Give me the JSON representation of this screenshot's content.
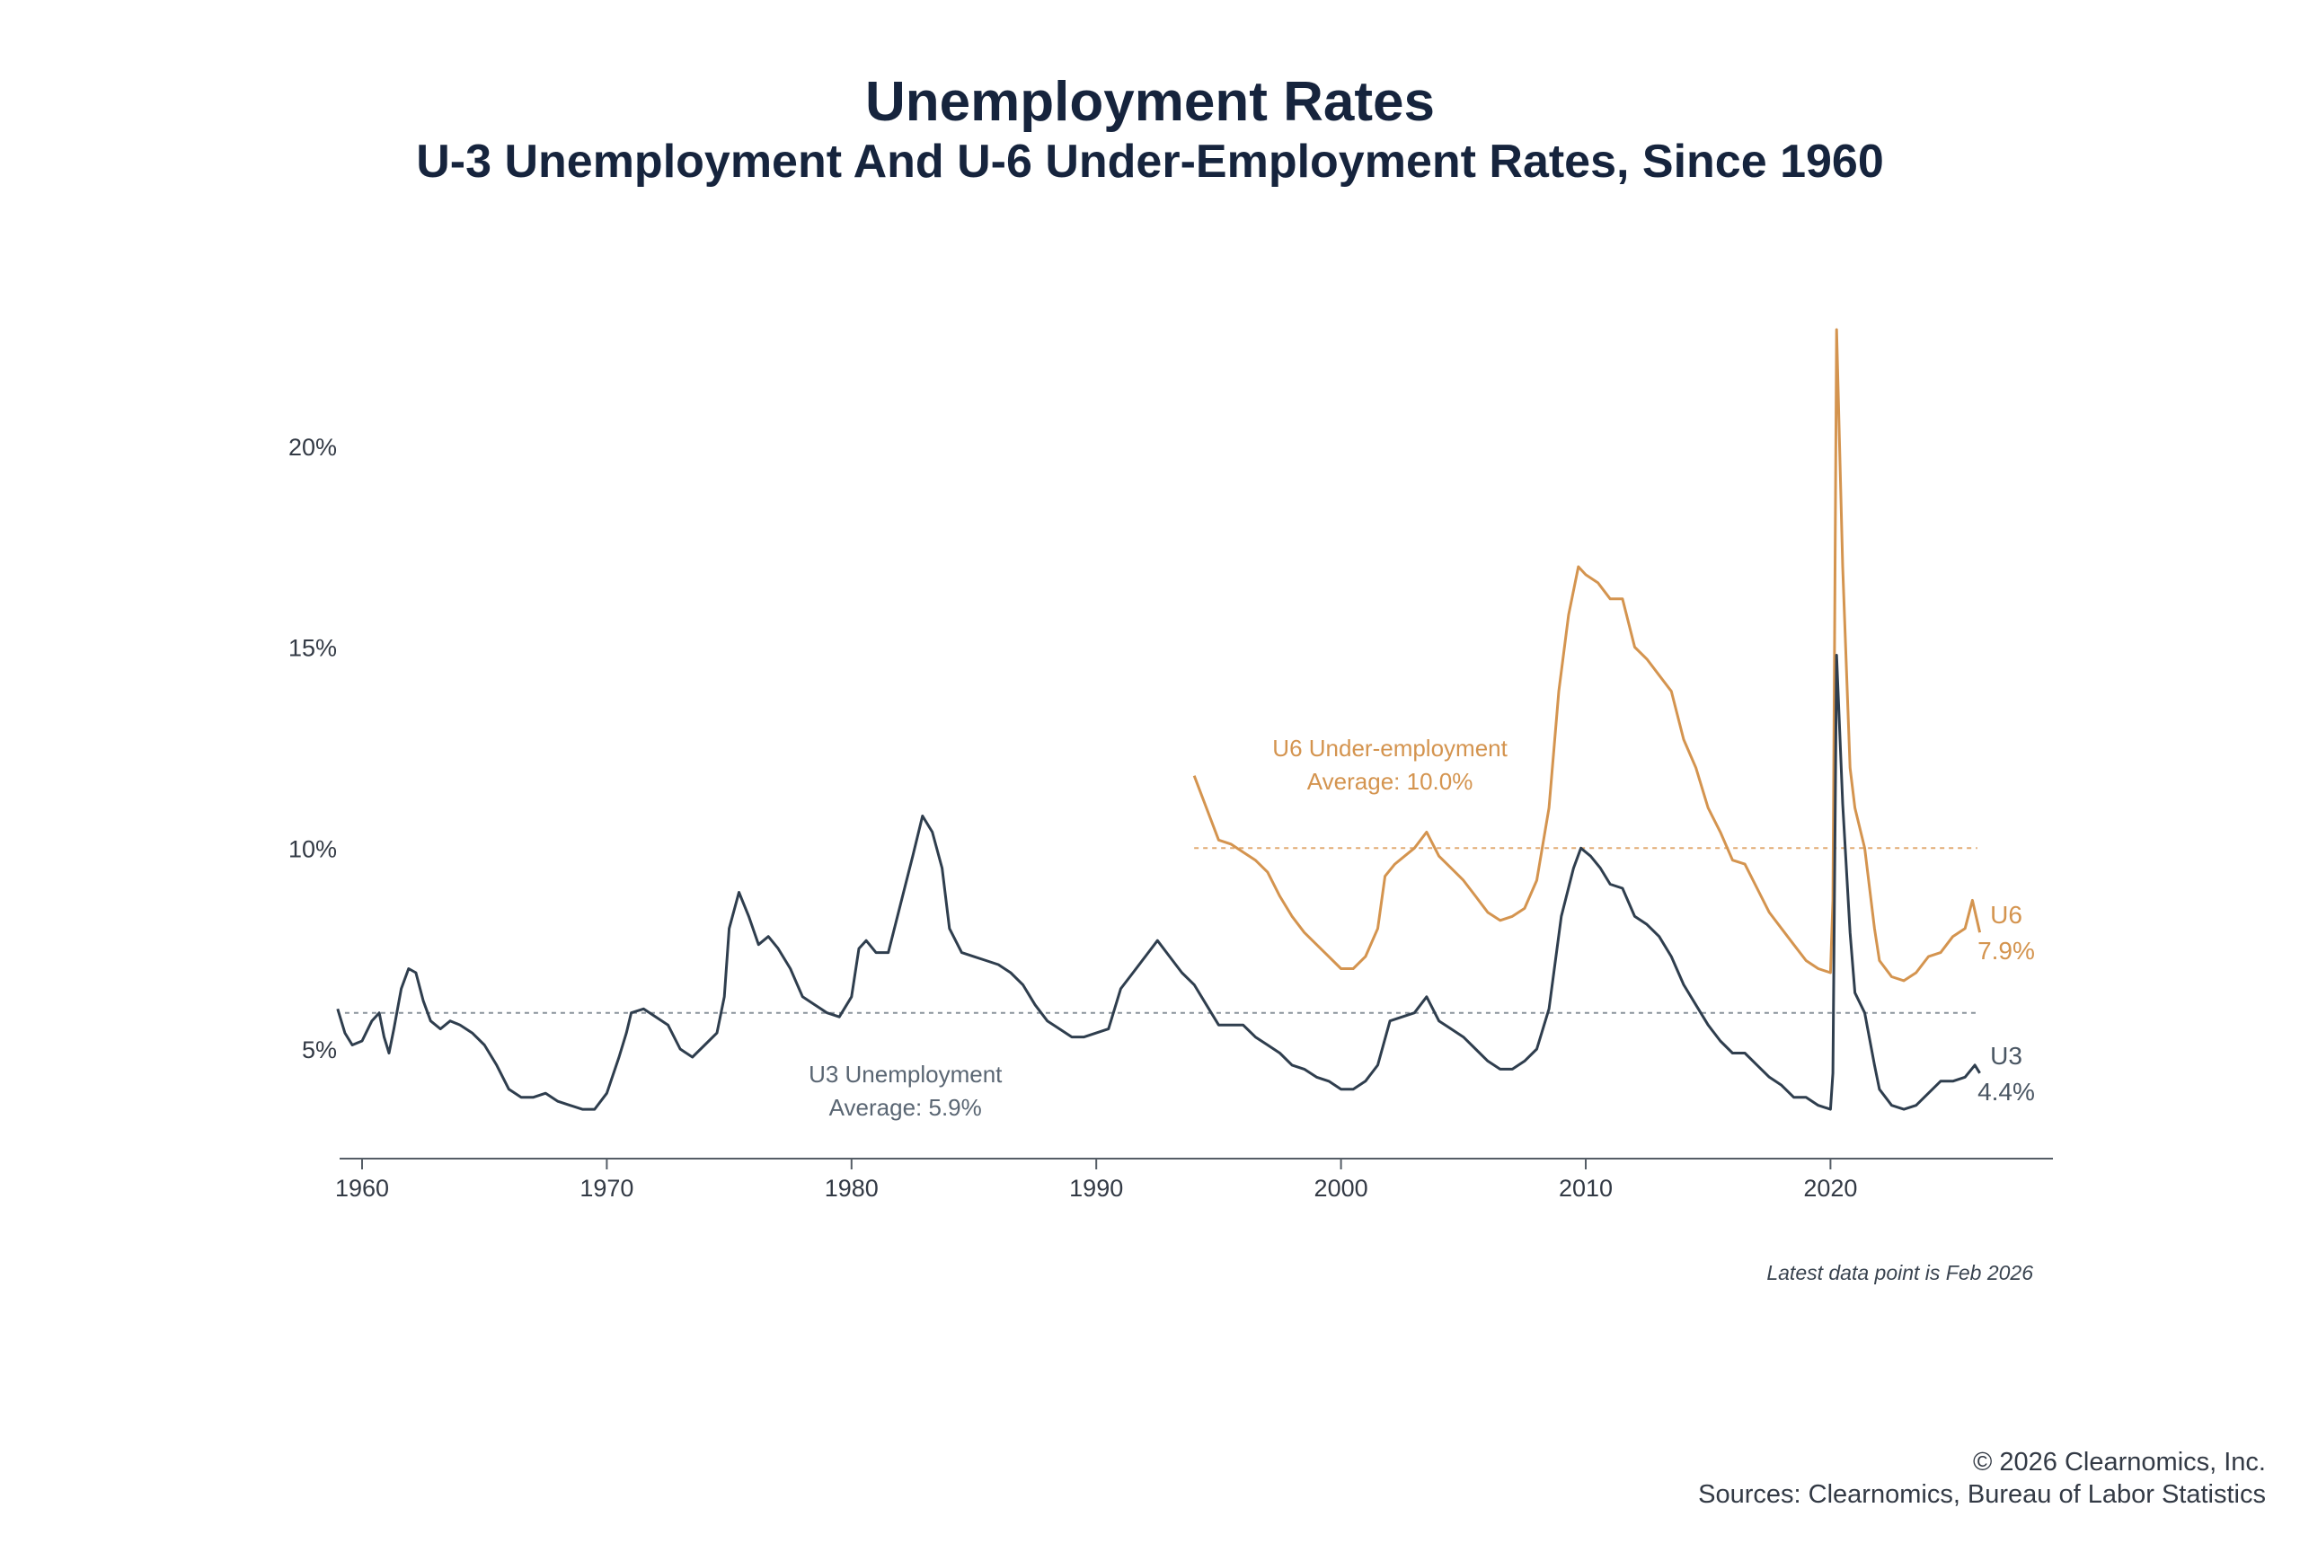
{
  "chart_data": {
    "type": "line",
    "title": "Unemployment Rates",
    "subtitle": "U-3 Unemployment And U-6 Under-Employment Rates, Since 1960",
    "xlabel": "",
    "ylabel": "",
    "xlim": [
      1960,
      2029
    ],
    "ylim": [
      2.4,
      23
    ],
    "x_ticks": [
      "1960",
      "1970",
      "1980",
      "1990",
      "2000",
      "2010",
      "2020"
    ],
    "y_ticks": [
      "5%",
      "10%",
      "15%",
      "20%"
    ],
    "grid": false,
    "note": "Latest data point is Feb 2026",
    "series": [
      {
        "name": "U3",
        "end_label": "U3",
        "end_value_label": "4.4%",
        "color": "#2f3e4e",
        "average": 5.9,
        "average_label_1": "U3 Unemployment",
        "average_label_2": "Average: 5.9%",
        "points": [
          [
            1959.0,
            6.0
          ],
          [
            1959.3,
            5.4
          ],
          [
            1959.6,
            5.1
          ],
          [
            1960.0,
            5.2
          ],
          [
            1960.4,
            5.7
          ],
          [
            1960.7,
            5.9
          ],
          [
            1960.9,
            5.3
          ],
          [
            1961.1,
            4.9
          ],
          [
            1961.3,
            5.5
          ],
          [
            1961.6,
            6.5
          ],
          [
            1961.9,
            7.0
          ],
          [
            1962.2,
            6.9
          ],
          [
            1962.5,
            6.2
          ],
          [
            1962.8,
            5.7
          ],
          [
            1963.2,
            5.5
          ],
          [
            1963.6,
            5.7
          ],
          [
            1964.0,
            5.6
          ],
          [
            1964.5,
            5.4
          ],
          [
            1965.0,
            5.1
          ],
          [
            1965.5,
            4.6
          ],
          [
            1966.0,
            4.0
          ],
          [
            1966.5,
            3.8
          ],
          [
            1967.0,
            3.8
          ],
          [
            1967.5,
            3.9
          ],
          [
            1968.0,
            3.7
          ],
          [
            1968.5,
            3.6
          ],
          [
            1969.0,
            3.5
          ],
          [
            1969.5,
            3.5
          ],
          [
            1970.0,
            3.9
          ],
          [
            1970.5,
            4.8
          ],
          [
            1970.8,
            5.4
          ],
          [
            1971.0,
            5.9
          ],
          [
            1971.5,
            6.0
          ],
          [
            1972.0,
            5.8
          ],
          [
            1972.5,
            5.6
          ],
          [
            1973.0,
            5.0
          ],
          [
            1973.5,
            4.8
          ],
          [
            1974.0,
            5.1
          ],
          [
            1974.5,
            5.4
          ],
          [
            1974.8,
            6.3
          ],
          [
            1975.0,
            8.0
          ],
          [
            1975.4,
            8.9
          ],
          [
            1975.8,
            8.3
          ],
          [
            1976.2,
            7.6
          ],
          [
            1976.6,
            7.8
          ],
          [
            1977.0,
            7.5
          ],
          [
            1977.5,
            7.0
          ],
          [
            1978.0,
            6.3
          ],
          [
            1978.5,
            6.1
          ],
          [
            1979.0,
            5.9
          ],
          [
            1979.5,
            5.8
          ],
          [
            1980.0,
            6.3
          ],
          [
            1980.3,
            7.5
          ],
          [
            1980.6,
            7.7
          ],
          [
            1981.0,
            7.4
          ],
          [
            1981.5,
            7.4
          ],
          [
            1982.0,
            8.6
          ],
          [
            1982.5,
            9.8
          ],
          [
            1982.9,
            10.8
          ],
          [
            1983.3,
            10.4
          ],
          [
            1983.7,
            9.5
          ],
          [
            1984.0,
            8.0
          ],
          [
            1984.5,
            7.4
          ],
          [
            1985.0,
            7.3
          ],
          [
            1985.5,
            7.2
          ],
          [
            1986.0,
            7.1
          ],
          [
            1986.5,
            6.9
          ],
          [
            1987.0,
            6.6
          ],
          [
            1987.5,
            6.1
          ],
          [
            1988.0,
            5.7
          ],
          [
            1988.5,
            5.5
          ],
          [
            1989.0,
            5.3
          ],
          [
            1989.5,
            5.3
          ],
          [
            1990.0,
            5.4
          ],
          [
            1990.5,
            5.5
          ],
          [
            1991.0,
            6.5
          ],
          [
            1991.5,
            6.9
          ],
          [
            1992.0,
            7.3
          ],
          [
            1992.5,
            7.7
          ],
          [
            1993.0,
            7.3
          ],
          [
            1993.5,
            6.9
          ],
          [
            1994.0,
            6.6
          ],
          [
            1994.5,
            6.1
          ],
          [
            1995.0,
            5.6
          ],
          [
            1995.5,
            5.6
          ],
          [
            1996.0,
            5.6
          ],
          [
            1996.5,
            5.3
          ],
          [
            1997.0,
            5.1
          ],
          [
            1997.5,
            4.9
          ],
          [
            1998.0,
            4.6
          ],
          [
            1998.5,
            4.5
          ],
          [
            1999.0,
            4.3
          ],
          [
            1999.5,
            4.2
          ],
          [
            2000.0,
            4.0
          ],
          [
            2000.5,
            4.0
          ],
          [
            2001.0,
            4.2
          ],
          [
            2001.5,
            4.6
          ],
          [
            2002.0,
            5.7
          ],
          [
            2002.5,
            5.8
          ],
          [
            2003.0,
            5.9
          ],
          [
            2003.5,
            6.3
          ],
          [
            2004.0,
            5.7
          ],
          [
            2004.5,
            5.5
          ],
          [
            2005.0,
            5.3
          ],
          [
            2005.5,
            5.0
          ],
          [
            2006.0,
            4.7
          ],
          [
            2006.5,
            4.5
          ],
          [
            2007.0,
            4.5
          ],
          [
            2007.5,
            4.7
          ],
          [
            2008.0,
            5.0
          ],
          [
            2008.5,
            6.0
          ],
          [
            2009.0,
            8.3
          ],
          [
            2009.5,
            9.5
          ],
          [
            2009.8,
            10.0
          ],
          [
            2010.2,
            9.8
          ],
          [
            2010.6,
            9.5
          ],
          [
            2011.0,
            9.1
          ],
          [
            2011.5,
            9.0
          ],
          [
            2012.0,
            8.3
          ],
          [
            2012.5,
            8.1
          ],
          [
            2013.0,
            7.8
          ],
          [
            2013.5,
            7.3
          ],
          [
            2014.0,
            6.6
          ],
          [
            2014.5,
            6.1
          ],
          [
            2015.0,
            5.6
          ],
          [
            2015.5,
            5.2
          ],
          [
            2016.0,
            4.9
          ],
          [
            2016.5,
            4.9
          ],
          [
            2017.0,
            4.6
          ],
          [
            2017.5,
            4.3
          ],
          [
            2018.0,
            4.1
          ],
          [
            2018.5,
            3.8
          ],
          [
            2019.0,
            3.8
          ],
          [
            2019.5,
            3.6
          ],
          [
            2020.0,
            3.5
          ],
          [
            2020.1,
            4.4
          ],
          [
            2020.25,
            14.8
          ],
          [
            2020.5,
            11.1
          ],
          [
            2020.8,
            7.9
          ],
          [
            2021.0,
            6.4
          ],
          [
            2021.4,
            5.9
          ],
          [
            2021.8,
            4.6
          ],
          [
            2022.0,
            4.0
          ],
          [
            2022.5,
            3.6
          ],
          [
            2023.0,
            3.5
          ],
          [
            2023.5,
            3.6
          ],
          [
            2024.0,
            3.9
          ],
          [
            2024.5,
            4.2
          ],
          [
            2025.0,
            4.2
          ],
          [
            2025.5,
            4.3
          ],
          [
            2025.9,
            4.6
          ],
          [
            2026.1,
            4.4
          ]
        ]
      },
      {
        "name": "U6",
        "end_label": "U6",
        "end_value_label": "7.9%",
        "color": "#d4944f",
        "average": 10.0,
        "average_label_1": "U6 Under-employment",
        "average_label_2": "Average: 10.0%",
        "points": [
          [
            1994.0,
            11.8
          ],
          [
            1994.5,
            11.0
          ],
          [
            1995.0,
            10.2
          ],
          [
            1995.5,
            10.1
          ],
          [
            1996.0,
            9.9
          ],
          [
            1996.5,
            9.7
          ],
          [
            1997.0,
            9.4
          ],
          [
            1997.5,
            8.8
          ],
          [
            1998.0,
            8.3
          ],
          [
            1998.5,
            7.9
          ],
          [
            1999.0,
            7.6
          ],
          [
            1999.5,
            7.3
          ],
          [
            2000.0,
            7.0
          ],
          [
            2000.5,
            7.0
          ],
          [
            2001.0,
            7.3
          ],
          [
            2001.5,
            8.0
          ],
          [
            2001.8,
            9.3
          ],
          [
            2002.2,
            9.6
          ],
          [
            2002.6,
            9.8
          ],
          [
            2003.0,
            10.0
          ],
          [
            2003.5,
            10.4
          ],
          [
            2004.0,
            9.8
          ],
          [
            2004.5,
            9.5
          ],
          [
            2005.0,
            9.2
          ],
          [
            2005.5,
            8.8
          ],
          [
            2006.0,
            8.4
          ],
          [
            2006.5,
            8.2
          ],
          [
            2007.0,
            8.3
          ],
          [
            2007.5,
            8.5
          ],
          [
            2008.0,
            9.2
          ],
          [
            2008.5,
            11.0
          ],
          [
            2008.9,
            13.9
          ],
          [
            2009.3,
            15.8
          ],
          [
            2009.7,
            17.0
          ],
          [
            2010.0,
            16.8
          ],
          [
            2010.5,
            16.6
          ],
          [
            2011.0,
            16.2
          ],
          [
            2011.5,
            16.2
          ],
          [
            2012.0,
            15.0
          ],
          [
            2012.5,
            14.7
          ],
          [
            2013.0,
            14.3
          ],
          [
            2013.5,
            13.9
          ],
          [
            2014.0,
            12.7
          ],
          [
            2014.5,
            12.0
          ],
          [
            2015.0,
            11.0
          ],
          [
            2015.5,
            10.4
          ],
          [
            2016.0,
            9.7
          ],
          [
            2016.5,
            9.6
          ],
          [
            2017.0,
            9.0
          ],
          [
            2017.5,
            8.4
          ],
          [
            2018.0,
            8.0
          ],
          [
            2018.5,
            7.6
          ],
          [
            2019.0,
            7.2
          ],
          [
            2019.5,
            7.0
          ],
          [
            2020.0,
            6.9
          ],
          [
            2020.1,
            8.7
          ],
          [
            2020.25,
            22.9
          ],
          [
            2020.5,
            17.0
          ],
          [
            2020.8,
            12.0
          ],
          [
            2021.0,
            11.0
          ],
          [
            2021.4,
            10.0
          ],
          [
            2021.8,
            8.0
          ],
          [
            2022.0,
            7.2
          ],
          [
            2022.5,
            6.8
          ],
          [
            2023.0,
            6.7
          ],
          [
            2023.5,
            6.9
          ],
          [
            2024.0,
            7.3
          ],
          [
            2024.5,
            7.4
          ],
          [
            2025.0,
            7.8
          ],
          [
            2025.5,
            8.0
          ],
          [
            2025.8,
            8.7
          ],
          [
            2026.1,
            7.9
          ]
        ]
      }
    ]
  },
  "footer": {
    "copyright": "© 2026 Clearnomics, Inc.",
    "sources": "Sources: Clearnomics, Bureau of Labor Statistics"
  }
}
